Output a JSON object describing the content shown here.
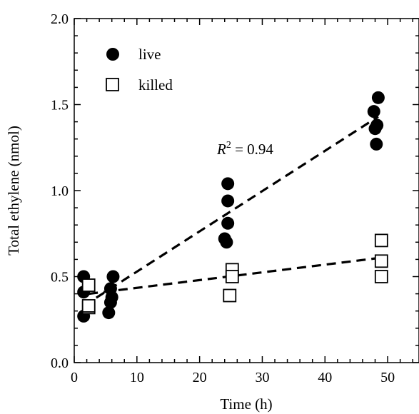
{
  "chart_data": {
    "type": "scatter",
    "xlabel": "Time (h)",
    "ylabel": "Total ethylene (nmol)",
    "xlim": [
      0,
      55
    ],
    "ylim": [
      0,
      2.0
    ],
    "x_ticks": [
      0,
      10,
      20,
      30,
      40,
      50
    ],
    "y_ticks": [
      0.0,
      0.5,
      1.0,
      1.5,
      2.0
    ],
    "x_tick_labels": [
      "0",
      "10",
      "20",
      "30",
      "40",
      "50"
    ],
    "y_tick_labels": [
      "0.0",
      "0.5",
      "1.0",
      "1.5",
      "2.0"
    ],
    "grid": false,
    "legend_position": "top-left",
    "series": [
      {
        "name": "live",
        "marker": "filled-circle",
        "color": "#000000",
        "points": [
          [
            1.5,
            0.5
          ],
          [
            1.5,
            0.41
          ],
          [
            1.5,
            0.27
          ],
          [
            5.5,
            0.29
          ],
          [
            5.8,
            0.35
          ],
          [
            5.8,
            0.43
          ],
          [
            6.0,
            0.38
          ],
          [
            6.2,
            0.5
          ],
          [
            24.0,
            0.72
          ],
          [
            24.3,
            0.7
          ],
          [
            24.5,
            0.81
          ],
          [
            24.5,
            0.94
          ],
          [
            24.5,
            1.04
          ],
          [
            47.8,
            1.46
          ],
          [
            48.0,
            1.36
          ],
          [
            48.2,
            1.27
          ],
          [
            48.3,
            1.38
          ],
          [
            48.5,
            1.54
          ]
        ],
        "trendline": {
          "x": [
            1.5,
            48.5
          ],
          "y": [
            0.33,
            1.43
          ],
          "style": "dashed"
        }
      },
      {
        "name": "killed",
        "marker": "open-square",
        "color": "#000000",
        "points": [
          [
            2.3,
            0.45
          ],
          [
            2.3,
            0.32
          ],
          [
            2.3,
            0.33
          ],
          [
            24.8,
            0.39
          ],
          [
            25.2,
            0.54
          ],
          [
            25.2,
            0.5
          ],
          [
            49.0,
            0.71
          ],
          [
            49.0,
            0.59
          ],
          [
            49.0,
            0.5
          ]
        ],
        "trendline": {
          "x": [
            2.3,
            49.0
          ],
          "y": [
            0.4,
            0.61
          ],
          "style": "dashed"
        }
      }
    ],
    "annotations": [
      {
        "text": "R",
        "superscript": "2",
        "rest": " = 0.94",
        "x": 22.5,
        "y": 1.22
      }
    ]
  }
}
